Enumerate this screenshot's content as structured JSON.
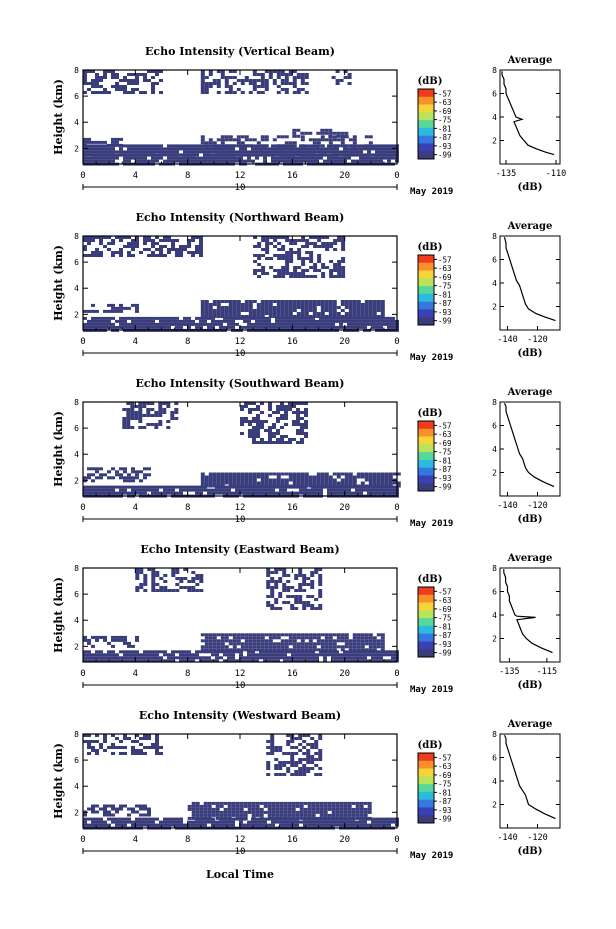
{
  "figure": {
    "xlabel": "Local Time"
  },
  "colorbar": {
    "unit": "(dB)",
    "ticks": [
      "-57",
      "-63",
      "-69",
      "-75",
      "-81",
      "-87",
      "-93",
      "-99"
    ],
    "colors": [
      "#ef3c1c",
      "#fb8f2a",
      "#f6d53a",
      "#b8e35a",
      "#57d79a",
      "#2bbbe0",
      "#3578e0",
      "#3a40b5",
      "#3a3d7c"
    ]
  },
  "chart_data": [
    {
      "type": "heatmap",
      "title": "Echo Intensity (Vertical Beam)",
      "ylabel": "Height (km)",
      "xlabel": "Local Time",
      "x_ticks": [
        "0",
        "4",
        "8",
        "12",
        "16",
        "20",
        "0"
      ],
      "y_ticks": [
        "2",
        "4",
        "6",
        "8"
      ],
      "date_marker": "10",
      "date_label": "May 2019",
      "xlim": [
        0,
        24
      ],
      "ylim": [
        0.8,
        8
      ],
      "clouds": [
        {
          "x": [
            0,
            24
          ],
          "y": [
            0.8,
            1.6
          ]
        },
        {
          "x": [
            0,
            24
          ],
          "y": [
            1.6,
            2.3
          ]
        },
        {
          "x": [
            9,
            22
          ],
          "y": [
            2.3,
            3.0
          ]
        },
        {
          "x": [
            0,
            3
          ],
          "y": [
            2.3,
            2.8
          ]
        },
        {
          "x": [
            16,
            20
          ],
          "y": [
            3.0,
            3.5
          ]
        },
        {
          "x": [
            0,
            6
          ],
          "y": [
            6.2,
            8
          ]
        },
        {
          "x": [
            9,
            17
          ],
          "y": [
            6.2,
            8
          ]
        },
        {
          "x": [
            19,
            20.5
          ],
          "y": [
            7.0,
            8
          ]
        }
      ],
      "average_profile": {
        "title": "Average",
        "xlabel": "(dB)",
        "x_ticks": [
          "-135",
          "-110"
        ],
        "xlim": [
          -138,
          -108
        ],
        "ylim": [
          0,
          8
        ],
        "y_ticks": [
          "2",
          "4",
          "6",
          "8"
        ],
        "height_km": [
          0.8,
          1.0,
          1.3,
          1.6,
          2.0,
          2.4,
          2.8,
          3.2,
          3.6,
          3.8,
          4.0,
          4.4,
          4.8,
          5.2,
          5.6,
          6.0,
          6.4,
          6.8,
          7.2,
          7.6,
          7.9
        ],
        "intensity_db": [
          -111,
          -115,
          -120,
          -124,
          -126,
          -128,
          -129,
          -130,
          -131,
          -127,
          -130,
          -131,
          -132,
          -133,
          -134,
          -135,
          -135,
          -136,
          -136,
          -137,
          -137
        ]
      }
    },
    {
      "type": "heatmap",
      "title": "Echo Intensity (Northward Beam)",
      "ylabel": "Height (km)",
      "xlabel": "Local Time",
      "x_ticks": [
        "0",
        "4",
        "8",
        "12",
        "16",
        "20",
        "0"
      ],
      "y_ticks": [
        "2",
        "4",
        "6",
        "8"
      ],
      "date_marker": "10",
      "date_label": "May 2019",
      "xlim": [
        0,
        24
      ],
      "ylim": [
        0.8,
        8
      ],
      "clouds": [
        {
          "x": [
            0,
            24
          ],
          "y": [
            0.8,
            1.8
          ]
        },
        {
          "x": [
            9,
            23
          ],
          "y": [
            1.8,
            3.1
          ]
        },
        {
          "x": [
            0,
            4
          ],
          "y": [
            2.2,
            2.8
          ]
        },
        {
          "x": [
            0,
            9
          ],
          "y": [
            6.6,
            8
          ]
        },
        {
          "x": [
            13,
            20
          ],
          "y": [
            5.0,
            8
          ]
        }
      ],
      "average_profile": {
        "title": "Average",
        "xlabel": "(dB)",
        "x_ticks": [
          "-140",
          "-120"
        ],
        "xlim": [
          -145,
          -105
        ],
        "ylim": [
          0,
          8
        ],
        "y_ticks": [
          "2",
          "4",
          "6",
          "8"
        ],
        "height_km": [
          0.8,
          1.1,
          1.4,
          1.8,
          2.2,
          2.6,
          3.0,
          3.4,
          3.8,
          4.2,
          4.6,
          5.0,
          5.4,
          5.8,
          6.2,
          6.6,
          7.0,
          7.4,
          7.9
        ],
        "intensity_db": [
          -108,
          -115,
          -121,
          -126,
          -128,
          -129,
          -130,
          -131,
          -132,
          -134,
          -135,
          -136,
          -137,
          -138,
          -139,
          -140,
          -141,
          -141,
          -142
        ]
      }
    },
    {
      "type": "heatmap",
      "title": "Echo Intensity (Southward Beam)",
      "ylabel": "Height (km)",
      "xlabel": "Local Time",
      "x_ticks": [
        "0",
        "4",
        "8",
        "12",
        "16",
        "20",
        "0"
      ],
      "y_ticks": [
        "2",
        "4",
        "6",
        "8"
      ],
      "date_marker": "10",
      "date_label": "May 2019",
      "xlim": [
        0,
        24
      ],
      "ylim": [
        0.8,
        8
      ],
      "clouds": [
        {
          "x": [
            0,
            24
          ],
          "y": [
            0.8,
            1.6
          ]
        },
        {
          "x": [
            9,
            24
          ],
          "y": [
            1.6,
            2.6
          ]
        },
        {
          "x": [
            0,
            5
          ],
          "y": [
            2.0,
            3.0
          ]
        },
        {
          "x": [
            3,
            7
          ],
          "y": [
            6.0,
            8
          ]
        },
        {
          "x": [
            12,
            17
          ],
          "y": [
            5.0,
            8
          ]
        }
      ],
      "average_profile": {
        "title": "Average",
        "xlabel": "(dB)",
        "x_ticks": [
          "-140",
          "-120"
        ],
        "xlim": [
          -145,
          -105
        ],
        "ylim": [
          0,
          8
        ],
        "y_ticks": [
          "2",
          "4",
          "6",
          "8"
        ],
        "height_km": [
          0.8,
          1.2,
          1.6,
          2.0,
          2.4,
          2.8,
          3.2,
          3.6,
          4.0,
          4.4,
          4.8,
          5.2,
          5.6,
          6.0,
          6.4,
          6.8,
          7.2,
          7.6,
          7.9
        ],
        "intensity_db": [
          -109,
          -116,
          -122,
          -126,
          -128,
          -129,
          -130,
          -132,
          -133,
          -134,
          -135,
          -136,
          -137,
          -138,
          -139,
          -140,
          -141,
          -141,
          -142
        ]
      }
    },
    {
      "type": "heatmap",
      "title": "Echo Intensity (Eastward Beam)",
      "ylabel": "Height (km)",
      "xlabel": "Local Time",
      "x_ticks": [
        "0",
        "4",
        "8",
        "12",
        "16",
        "20",
        "0"
      ],
      "y_ticks": [
        "2",
        "4",
        "6",
        "8"
      ],
      "date_marker": "10",
      "date_label": "May 2019",
      "xlim": [
        0,
        24
      ],
      "ylim": [
        0.8,
        8
      ],
      "clouds": [
        {
          "x": [
            0,
            24
          ],
          "y": [
            0.8,
            1.7
          ]
        },
        {
          "x": [
            9,
            23
          ],
          "y": [
            1.7,
            3.0
          ]
        },
        {
          "x": [
            0,
            4
          ],
          "y": [
            2.0,
            2.8
          ]
        },
        {
          "x": [
            4,
            9
          ],
          "y": [
            6.2,
            8
          ]
        },
        {
          "x": [
            14,
            18
          ],
          "y": [
            5.0,
            8
          ]
        }
      ],
      "average_profile": {
        "title": "Average",
        "xlabel": "(dB)",
        "x_ticks": [
          "-135",
          "-115"
        ],
        "xlim": [
          -140,
          -108
        ],
        "ylim": [
          0,
          8
        ],
        "y_ticks": [
          "2",
          "4",
          "6",
          "8"
        ],
        "height_km": [
          0.8,
          1.2,
          1.6,
          2.0,
          2.4,
          2.8,
          3.2,
          3.6,
          3.8,
          3.9,
          4.0,
          4.4,
          4.8,
          5.2,
          5.6,
          6.0,
          6.4,
          6.8,
          7.2,
          7.6,
          7.9
        ],
        "intensity_db": [
          -112,
          -118,
          -123,
          -126,
          -128,
          -129,
          -130,
          -131,
          -121,
          -131,
          -132,
          -133,
          -134,
          -135,
          -135,
          -136,
          -136,
          -137,
          -137,
          -138,
          -138
        ]
      }
    },
    {
      "type": "heatmap",
      "title": "Echo Intensity (Westward Beam)",
      "ylabel": "Height (km)",
      "xlabel": "Local Time",
      "x_ticks": [
        "0",
        "4",
        "8",
        "12",
        "16",
        "20",
        "0"
      ],
      "y_ticks": [
        "2",
        "4",
        "6",
        "8"
      ],
      "date_marker": "10",
      "date_label": "May 2019",
      "xlim": [
        0,
        24
      ],
      "ylim": [
        0.8,
        8
      ],
      "clouds": [
        {
          "x": [
            0,
            24
          ],
          "y": [
            0.8,
            1.6
          ]
        },
        {
          "x": [
            8,
            22
          ],
          "y": [
            1.6,
            2.8
          ]
        },
        {
          "x": [
            0,
            5
          ],
          "y": [
            1.8,
            2.6
          ]
        },
        {
          "x": [
            0,
            6
          ],
          "y": [
            6.6,
            8
          ]
        },
        {
          "x": [
            14,
            18
          ],
          "y": [
            5.0,
            8
          ]
        }
      ],
      "average_profile": {
        "title": "Average",
        "xlabel": "(dB)",
        "x_ticks": [
          "-140",
          "-120"
        ],
        "xlim": [
          -145,
          -105
        ],
        "ylim": [
          0,
          8
        ],
        "y_ticks": [
          "2",
          "4",
          "6",
          "8"
        ],
        "height_km": [
          0.8,
          1.2,
          1.6,
          2.0,
          2.4,
          2.8,
          3.2,
          3.6,
          4.0,
          4.4,
          4.8,
          5.2,
          5.6,
          6.0,
          6.4,
          6.8,
          7.2,
          7.6,
          7.9
        ],
        "intensity_db": [
          -108,
          -115,
          -121,
          -126,
          -127,
          -128,
          -130,
          -132,
          -133,
          -134,
          -135,
          -136,
          -137,
          -138,
          -139,
          -140,
          -141,
          -141,
          -142
        ]
      }
    }
  ]
}
